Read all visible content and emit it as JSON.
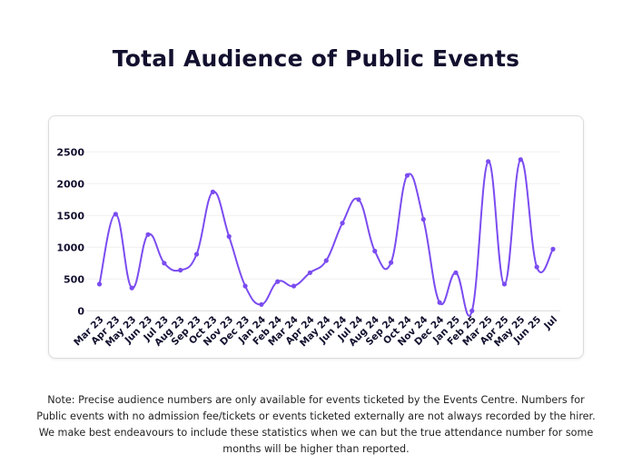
{
  "chart_data": {
    "type": "line",
    "title": "Total Audience of Public Events",
    "xlabel": "",
    "ylabel": "",
    "categories": [
      "Mar 23",
      "Apr 23",
      "May 23",
      "Jun 23",
      "Jul 23",
      "Aug 23",
      "Sep 23",
      "Oct 23",
      "Nov 23",
      "Dec 23",
      "Jan 24",
      "Feb 24",
      "Mar 24",
      "Apr 24",
      "May 24",
      "Jun 24",
      "Jul 24",
      "Aug 24",
      "Sep 24",
      "Oct 24",
      "Nov 24",
      "Dec 24",
      "Jan 25",
      "Feb 25",
      "Mar 25",
      "Apr 25",
      "May 25",
      "Jun 25",
      "Jul"
    ],
    "values": [
      420,
      1520,
      360,
      1200,
      750,
      640,
      890,
      1870,
      1170,
      390,
      100,
      460,
      390,
      600,
      790,
      1380,
      1750,
      940,
      760,
      2130,
      1440,
      130,
      600,
      0,
      2350,
      420,
      2380,
      690,
      970
    ],
    "ylim": [
      0,
      2500
    ],
    "yticks": [
      0,
      500,
      1000,
      1500,
      2000,
      2500
    ],
    "grid": true,
    "legend": "none",
    "line_color": "#7b4cf0"
  },
  "note": "Note: Precise audience numbers are only available for events ticketed by the Events Centre. Numbers for Public events with no admission fee/tickets  or events ticketed externally are not always recorded by the hirer.  We make best endeavours to include these statistics when we can but the true attendance number for some months will be higher than reported."
}
